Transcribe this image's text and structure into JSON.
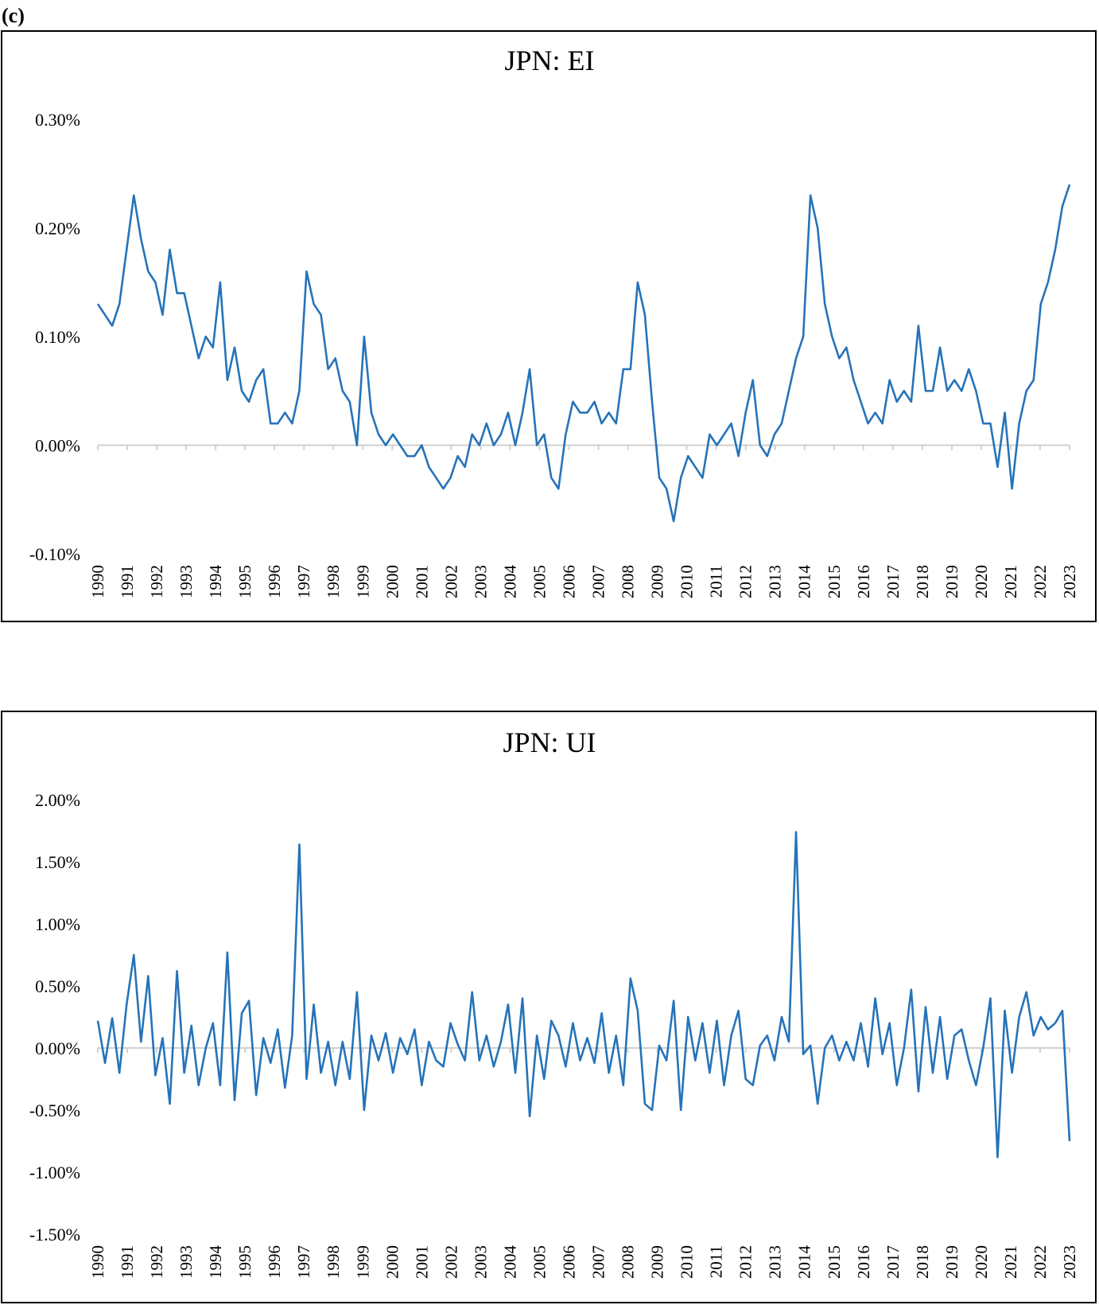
{
  "label": "(c)",
  "chart_data": [
    {
      "type": "line",
      "title": "JPN: EI",
      "xlim": [
        1990,
        2023
      ],
      "xticks": [
        1990,
        1991,
        1992,
        1993,
        1994,
        1995,
        1996,
        1997,
        1998,
        1999,
        2000,
        2001,
        2002,
        2003,
        2004,
        2005,
        2006,
        2007,
        2008,
        2009,
        2010,
        2011,
        2012,
        2013,
        2014,
        2015,
        2016,
        2017,
        2018,
        2019,
        2020,
        2021,
        2022,
        2023
      ],
      "ylim": [
        -0.1,
        0.3
      ],
      "yticks": [
        {
          "value": -0.1,
          "label": "-0.10%"
        },
        {
          "value": 0,
          "label": "0.00%"
        },
        {
          "value": 0.1,
          "label": "0.10%"
        },
        {
          "value": 0.2,
          "label": "0.20%"
        },
        {
          "value": 0.3,
          "label": "0.30%"
        }
      ],
      "color": "#2673b9",
      "values": [
        0.13,
        0.12,
        0.11,
        0.13,
        0.18,
        0.23,
        0.19,
        0.16,
        0.15,
        0.12,
        0.18,
        0.14,
        0.14,
        0.11,
        0.08,
        0.1,
        0.09,
        0.15,
        0.06,
        0.09,
        0.05,
        0.04,
        0.06,
        0.07,
        0.02,
        0.02,
        0.03,
        0.02,
        0.05,
        0.16,
        0.13,
        0.12,
        0.07,
        0.08,
        0.05,
        0.04,
        0.0,
        0.1,
        0.03,
        0.01,
        0.0,
        0.01,
        0.0,
        -0.01,
        -0.01,
        0.0,
        -0.02,
        -0.03,
        -0.04,
        -0.03,
        -0.01,
        -0.02,
        0.01,
        0.0,
        0.02,
        0.0,
        0.01,
        0.03,
        0.0,
        0.03,
        0.07,
        0.0,
        0.01,
        -0.03,
        -0.04,
        0.01,
        0.04,
        0.03,
        0.03,
        0.04,
        0.02,
        0.03,
        0.02,
        0.07,
        0.07,
        0.15,
        0.12,
        0.04,
        -0.03,
        -0.04,
        -0.07,
        -0.03,
        -0.01,
        -0.02,
        -0.03,
        0.01,
        0.0,
        0.01,
        0.02,
        -0.01,
        0.03,
        0.06,
        0.0,
        -0.01,
        0.01,
        0.02,
        0.05,
        0.08,
        0.1,
        0.23,
        0.2,
        0.13,
        0.1,
        0.08,
        0.09,
        0.06,
        0.04,
        0.02,
        0.03,
        0.02,
        0.06,
        0.04,
        0.05,
        0.04,
        0.11,
        0.05,
        0.05,
        0.09,
        0.05,
        0.06,
        0.05,
        0.07,
        0.05,
        0.02,
        0.02,
        -0.02,
        0.03,
        -0.04,
        0.02,
        0.05,
        0.06,
        0.13,
        0.15,
        0.18,
        0.22,
        0.24
      ]
    },
    {
      "type": "line",
      "title": "JPN: UI",
      "xlim": [
        1990,
        2023
      ],
      "xticks": [
        1990,
        1991,
        1992,
        1993,
        1994,
        1995,
        1996,
        1997,
        1998,
        1999,
        2000,
        2001,
        2002,
        2003,
        2004,
        2005,
        2006,
        2007,
        2008,
        2009,
        2010,
        2011,
        2012,
        2013,
        2014,
        2015,
        2016,
        2017,
        2018,
        2019,
        2020,
        2021,
        2022,
        2023
      ],
      "ylim": [
        -1.5,
        2.0
      ],
      "yticks": [
        {
          "value": -1.5,
          "label": "-1.50%"
        },
        {
          "value": -1,
          "label": "-1.00%"
        },
        {
          "value": -0.5,
          "label": "-0.50%"
        },
        {
          "value": 0,
          "label": "0.00%"
        },
        {
          "value": 0.5,
          "label": "0.50%"
        },
        {
          "value": 1,
          "label": "1.00%"
        },
        {
          "value": 1.5,
          "label": "1.50%"
        },
        {
          "value": 2,
          "label": "2.00%"
        }
      ],
      "color": "#2673b9",
      "values": [
        0.22,
        -0.12,
        0.24,
        -0.2,
        0.35,
        0.75,
        0.05,
        0.58,
        -0.22,
        0.08,
        -0.45,
        0.62,
        -0.2,
        0.18,
        -0.3,
        0.0,
        0.2,
        -0.3,
        0.77,
        -0.42,
        0.28,
        0.38,
        -0.38,
        0.08,
        -0.12,
        0.15,
        -0.32,
        0.1,
        1.64,
        -0.25,
        0.35,
        -0.2,
        0.05,
        -0.3,
        0.05,
        -0.25,
        0.45,
        -0.5,
        0.1,
        -0.1,
        0.12,
        -0.2,
        0.08,
        -0.05,
        0.15,
        -0.3,
        0.05,
        -0.1,
        -0.15,
        0.2,
        0.03,
        -0.1,
        0.45,
        -0.1,
        0.1,
        -0.15,
        0.05,
        0.35,
        -0.2,
        0.4,
        -0.55,
        0.1,
        -0.25,
        0.22,
        0.1,
        -0.15,
        0.2,
        -0.1,
        0.08,
        -0.12,
        0.28,
        -0.2,
        0.1,
        -0.3,
        0.56,
        0.3,
        -0.45,
        -0.5,
        0.02,
        -0.1,
        0.38,
        -0.5,
        0.25,
        -0.1,
        0.2,
        -0.2,
        0.22,
        -0.3,
        0.1,
        0.3,
        -0.25,
        -0.3,
        0.02,
        0.1,
        -0.1,
        0.25,
        0.05,
        1.74,
        -0.05,
        0.02,
        -0.45,
        0.0,
        0.1,
        -0.1,
        0.05,
        -0.1,
        0.2,
        -0.15,
        0.4,
        -0.05,
        0.2,
        -0.3,
        0.0,
        0.47,
        -0.35,
        0.33,
        -0.2,
        0.25,
        -0.25,
        0.1,
        0.15,
        -0.1,
        -0.3,
        0.0,
        0.4,
        -0.88,
        0.3,
        -0.2,
        0.25,
        0.45,
        0.1,
        0.25,
        0.15,
        0.2,
        0.3,
        -0.75
      ]
    }
  ]
}
